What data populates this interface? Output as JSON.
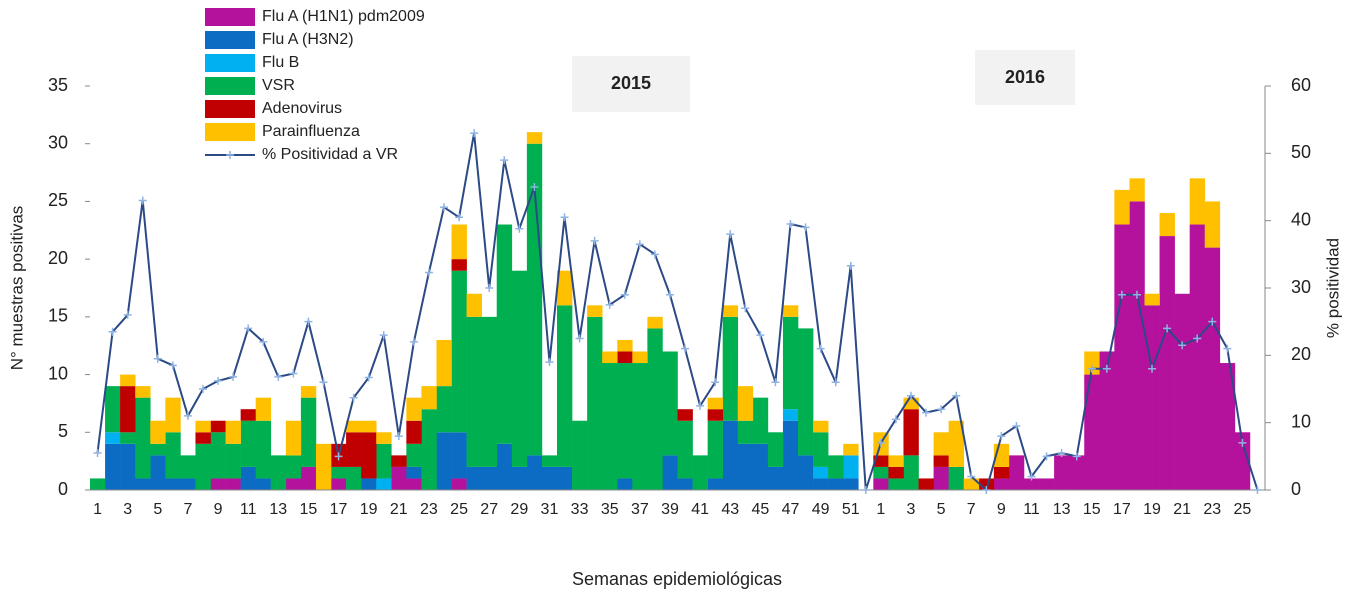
{
  "chart_data": {
    "type": "bar",
    "stacked": true,
    "annotations": [
      "2015",
      "2016"
    ],
    "x_label": "Semanas epidemiológicas",
    "y_label": "N° muestras positivas",
    "y2_label": "% positividad",
    "categories": [
      "1",
      null,
      "3",
      null,
      "5",
      null,
      "7",
      null,
      "9",
      null,
      "11",
      null,
      "13",
      null,
      "15",
      null,
      "17",
      null,
      "19",
      null,
      "21",
      null,
      "23",
      null,
      "25",
      null,
      "27",
      null,
      "29",
      null,
      "31",
      null,
      "33",
      null,
      "35",
      null,
      "37",
      null,
      "39",
      null,
      "41",
      null,
      "43",
      null,
      "45",
      null,
      "47",
      null,
      "49",
      null,
      "51",
      null,
      "1",
      null,
      "3",
      null,
      "5",
      null,
      "7",
      null,
      "9",
      null,
      "11",
      null,
      "13",
      null,
      "15",
      null,
      "17",
      null,
      "19",
      null,
      "21",
      null,
      "23",
      null,
      "25",
      null
    ],
    "ylim": [
      0,
      35
    ],
    "yticks": [
      0,
      5,
      10,
      15,
      20,
      25,
      30,
      35
    ],
    "y2lim": [
      0,
      60
    ],
    "y2ticks": [
      0,
      10,
      20,
      30,
      40,
      50,
      60
    ],
    "legend": "top-left",
    "series": [
      {
        "name": "Flu A (H1N1) pdm2009",
        "color": "#b4119c",
        "values": [
          0,
          0,
          0,
          0,
          0,
          0,
          0,
          0,
          1,
          1,
          0,
          0,
          0,
          1,
          2,
          0,
          1,
          0,
          0,
          0,
          2,
          1,
          0,
          0,
          1,
          0,
          0,
          0,
          0,
          0,
          0,
          0,
          0,
          0,
          0,
          0,
          0,
          0,
          0,
          0,
          0,
          0,
          0,
          0,
          0,
          0,
          0,
          0,
          0,
          0,
          0,
          0,
          1,
          0,
          0,
          0,
          2,
          0,
          0,
          0,
          1,
          3,
          1,
          1,
          3,
          3,
          10,
          12,
          23,
          25,
          16,
          22,
          17,
          23,
          21,
          11,
          5,
          0
        ]
      },
      {
        "name": "Flu A (H3N2)",
        "color": "#0c6cc4",
        "values": [
          0,
          4,
          4,
          1,
          3,
          1,
          1,
          0,
          0,
          0,
          2,
          1,
          0,
          0,
          0,
          0,
          0,
          0,
          1,
          0,
          0,
          1,
          0,
          5,
          4,
          2,
          2,
          4,
          2,
          3,
          2,
          2,
          0,
          0,
          0,
          1,
          0,
          0,
          3,
          1,
          0,
          1,
          6,
          4,
          4,
          2,
          6,
          3,
          1,
          1,
          1,
          0,
          0,
          0,
          0,
          0,
          0,
          0,
          0,
          0,
          0,
          0,
          0,
          0,
          0,
          0,
          0,
          0,
          0,
          0,
          0,
          0,
          0,
          0,
          0,
          0,
          0,
          0
        ]
      },
      {
        "name": "Flu B",
        "color": "#00b0f0",
        "values": [
          0,
          1,
          0,
          0,
          0,
          0,
          0,
          0,
          0,
          0,
          0,
          0,
          0,
          0,
          0,
          0,
          0,
          0,
          0,
          1,
          0,
          0,
          0,
          0,
          0,
          0,
          0,
          0,
          0,
          0,
          0,
          0,
          0,
          0,
          0,
          0,
          0,
          0,
          0,
          0,
          0,
          0,
          0,
          0,
          0,
          0,
          1,
          0,
          1,
          0,
          2,
          0,
          0,
          0,
          0,
          0,
          0,
          0,
          0,
          0,
          0,
          0,
          0,
          0,
          0,
          0,
          0,
          0,
          0,
          0,
          0,
          0,
          0,
          0,
          0,
          0,
          0,
          0
        ]
      },
      {
        "name": "VSR",
        "color": "#00b050",
        "values": [
          1,
          4,
          1,
          7,
          1,
          4,
          2,
          4,
          4,
          3,
          4,
          5,
          3,
          2,
          6,
          0,
          1,
          2,
          0,
          3,
          0,
          2,
          7,
          4,
          14,
          13,
          13,
          19,
          17,
          27,
          1,
          14,
          6,
          15,
          11,
          10,
          11,
          14,
          9,
          5,
          3,
          5,
          9,
          2,
          4,
          3,
          8,
          11,
          3,
          2,
          0,
          0,
          1,
          1,
          3,
          0,
          0,
          2,
          0,
          0,
          0,
          0,
          0,
          0,
          0,
          0,
          0,
          0,
          0,
          0,
          0,
          0,
          0,
          0,
          0,
          0,
          0,
          0
        ]
      },
      {
        "name": "Adenovirus",
        "color": "#c00000",
        "values": [
          0,
          0,
          4,
          0,
          0,
          0,
          0,
          1,
          1,
          0,
          1,
          0,
          0,
          0,
          0,
          0,
          2,
          3,
          4,
          0,
          1,
          2,
          0,
          0,
          1,
          0,
          0,
          0,
          0,
          0,
          0,
          0,
          0,
          0,
          0,
          1,
          0,
          0,
          0,
          1,
          0,
          1,
          0,
          0,
          0,
          0,
          0,
          0,
          0,
          0,
          0,
          0,
          1,
          1,
          4,
          1,
          1,
          0,
          0,
          1,
          1,
          0,
          0,
          0,
          0,
          0,
          0,
          0,
          0,
          0,
          0,
          0,
          0,
          0,
          0,
          0,
          0,
          0
        ]
      },
      {
        "name": "Parainfluenza",
        "color": "#ffc000",
        "values": [
          0,
          0,
          1,
          1,
          2,
          3,
          0,
          1,
          0,
          2,
          0,
          2,
          0,
          3,
          1,
          4,
          0,
          1,
          1,
          1,
          0,
          2,
          2,
          4,
          3,
          2,
          0,
          0,
          0,
          1,
          0,
          3,
          0,
          1,
          1,
          1,
          1,
          1,
          0,
          0,
          0,
          1,
          1,
          3,
          0,
          0,
          1,
          0,
          1,
          0,
          1,
          0,
          2,
          1,
          1,
          0,
          2,
          4,
          1,
          0,
          2,
          0,
          0,
          0,
          0,
          0,
          2,
          0,
          3,
          2,
          1,
          2,
          0,
          4,
          4,
          0,
          0,
          0
        ]
      },
      {
        "name": "% Positividad a VR",
        "type": "line",
        "axis": "y2",
        "color": "#2b4a86",
        "marker_color": "#8fb4e3",
        "values": [
          5.5,
          23.5,
          26,
          43,
          19.5,
          18.5,
          11,
          15,
          16.2,
          16.8,
          24,
          22,
          16.8,
          17.3,
          25,
          16,
          5,
          13.7,
          16.7,
          23,
          8,
          22,
          32.3,
          42,
          40.5,
          53,
          30,
          49,
          38.8,
          45,
          19,
          40.5,
          22.5,
          37,
          27.5,
          29,
          36.5,
          35,
          29,
          21,
          12.5,
          16,
          38,
          27,
          23,
          16,
          39.5,
          39,
          21,
          16,
          33.3,
          0,
          7,
          10.5,
          14,
          11.5,
          12,
          14,
          2,
          0,
          8,
          9.5,
          2,
          5,
          5.5,
          5,
          18,
          18,
          29,
          29,
          18,
          24,
          21.5,
          22.5,
          25,
          21,
          7,
          0
        ]
      }
    ]
  }
}
